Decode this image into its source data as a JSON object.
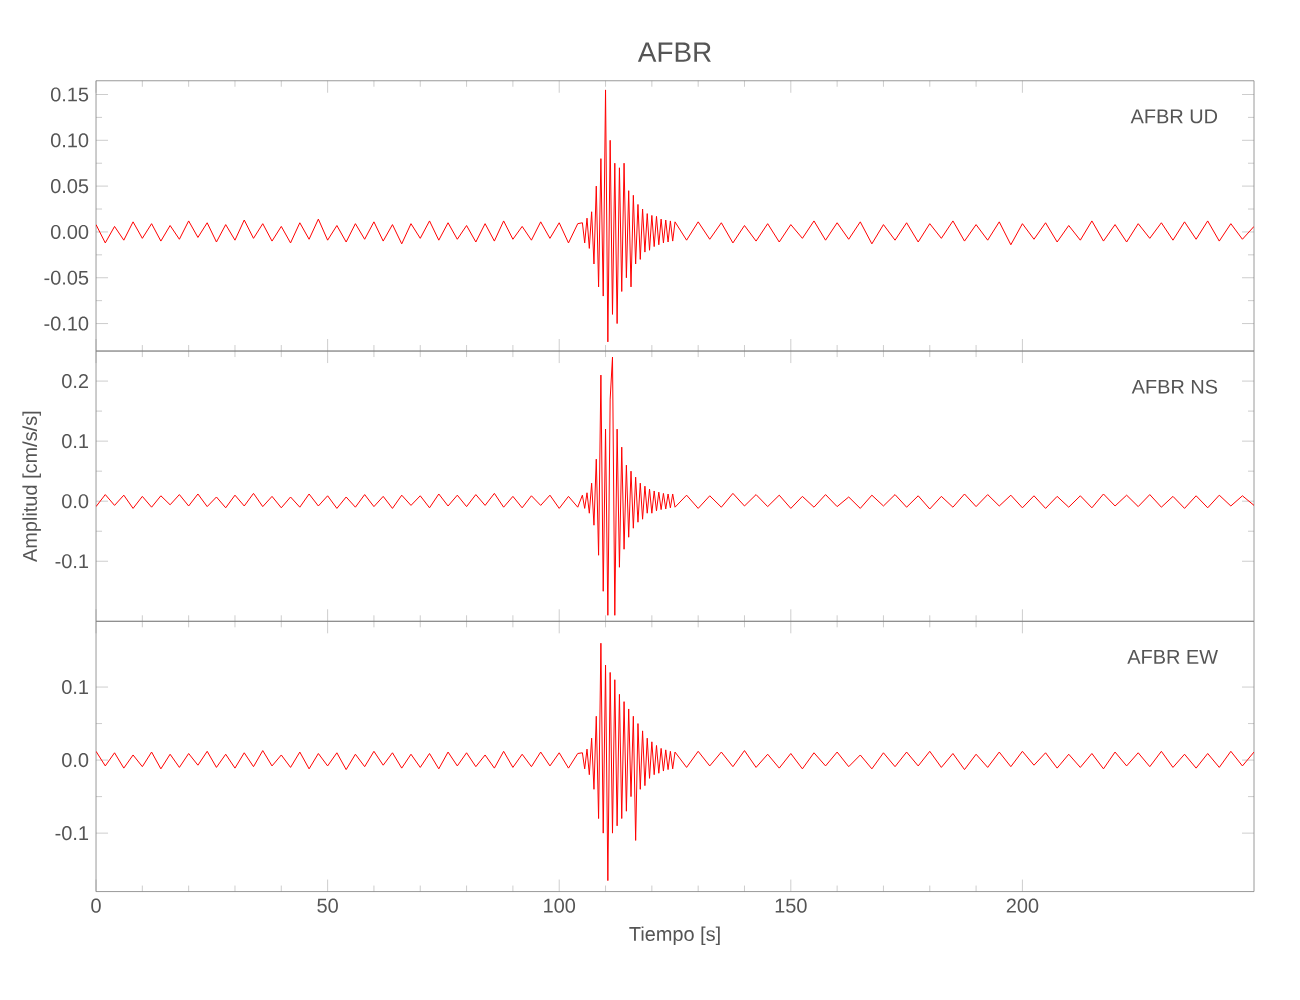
{
  "chart_data": [
    {
      "type": "line",
      "title": "AFBR",
      "annotations": [
        "AFBR   UD"
      ],
      "color": "#ff0000",
      "x": [
        0,
        2,
        4,
        6,
        8,
        10,
        12,
        14,
        16,
        18,
        20,
        22,
        24,
        26,
        28,
        30,
        32,
        34,
        36,
        38,
        40,
        42,
        44,
        46,
        48,
        50,
        52,
        54,
        56,
        58,
        60,
        62,
        64,
        66,
        68,
        70,
        72,
        74,
        76,
        78,
        80,
        82,
        84,
        86,
        88,
        90,
        92,
        94,
        96,
        98,
        100,
        102,
        104,
        105,
        105.5,
        106,
        106.5,
        107,
        107.5,
        108,
        108.5,
        109,
        109.5,
        110,
        110.5,
        111,
        111.5,
        112,
        112.5,
        113,
        113.5,
        114,
        114.5,
        115,
        115.5,
        116,
        116.5,
        117,
        117.5,
        118,
        118.5,
        119,
        119.5,
        120,
        120.5,
        121,
        121.5,
        122,
        122.5,
        123,
        123.5,
        124,
        124.5,
        125,
        127.5,
        130,
        132.5,
        135,
        137.5,
        140,
        142.5,
        145,
        147.5,
        150,
        152.5,
        155,
        157.5,
        160,
        162.5,
        165,
        167.5,
        170,
        172.5,
        175,
        177.5,
        180,
        182.5,
        185,
        187.5,
        190,
        192.5,
        195,
        197.5,
        200,
        202.5,
        205,
        207.5,
        210,
        212.5,
        215,
        217.5,
        220,
        222.5,
        225,
        227.5,
        230,
        232.5,
        235,
        237.5,
        240,
        242.5,
        245,
        247.5,
        250
      ],
      "values": [
        0.008,
        -0.012,
        0.006,
        -0.009,
        0.011,
        -0.007,
        0.009,
        -0.01,
        0.007,
        -0.008,
        0.012,
        -0.006,
        0.01,
        -0.011,
        0.008,
        -0.009,
        0.013,
        -0.007,
        0.009,
        -0.01,
        0.006,
        -0.012,
        0.01,
        -0.008,
        0.014,
        -0.009,
        0.007,
        -0.011,
        0.009,
        -0.008,
        0.011,
        -0.01,
        0.008,
        -0.013,
        0.009,
        -0.007,
        0.012,
        -0.009,
        0.01,
        -0.008,
        0.007,
        -0.011,
        0.009,
        -0.01,
        0.012,
        -0.008,
        0.006,
        -0.009,
        0.011,
        -0.007,
        0.01,
        -0.012,
        0.009,
        0.01,
        -0.012,
        0.015,
        -0.018,
        0.022,
        -0.035,
        0.05,
        -0.06,
        0.08,
        -0.07,
        0.155,
        -0.12,
        0.1,
        -0.09,
        0.075,
        -0.1,
        0.07,
        -0.065,
        0.075,
        -0.05,
        0.045,
        -0.06,
        0.04,
        -0.035,
        0.03,
        -0.03,
        0.025,
        -0.022,
        0.02,
        -0.02,
        0.018,
        -0.016,
        0.017,
        -0.014,
        0.014,
        -0.012,
        0.013,
        -0.011,
        0.012,
        -0.01,
        0.011,
        -0.009,
        0.011,
        -0.008,
        0.01,
        -0.012,
        0.007,
        -0.01,
        0.009,
        -0.011,
        0.008,
        -0.007,
        0.012,
        -0.009,
        0.01,
        -0.008,
        0.011,
        -0.013,
        0.008,
        -0.009,
        0.01,
        -0.011,
        0.009,
        -0.007,
        0.012,
        -0.01,
        0.008,
        -0.009,
        0.011,
        -0.014,
        0.009,
        -0.008,
        0.01,
        -0.011,
        0.007,
        -0.009,
        0.012,
        -0.01,
        0.008,
        -0.011,
        0.009,
        -0.007,
        0.01,
        -0.009,
        0.011,
        -0.008,
        0.012,
        -0.01,
        0.009,
        -0.008,
        0.006
      ],
      "xlim": [
        0,
        250
      ],
      "xticks": [
        0,
        50,
        100,
        150,
        200
      ],
      "ylim": [
        -0.13,
        0.165
      ],
      "yticks": [
        {
          "value": -0.1,
          "label": "-0.10"
        },
        {
          "value": -0.05,
          "label": "-0.05"
        },
        {
          "value": 0,
          "label": "0.00"
        },
        {
          "value": 0.05,
          "label": "0.05"
        },
        {
          "value": 0.1,
          "label": "0.10"
        },
        {
          "value": 0.15,
          "label": "0.15"
        }
      ],
      "tick_labels": "y"
    },
    {
      "type": "line",
      "ylabel": "Amplitud [cm/s/s]",
      "annotations": [
        "AFBR   NS"
      ],
      "color": "#ff0000",
      "x": [
        0,
        2,
        4,
        6,
        8,
        10,
        12,
        14,
        16,
        18,
        20,
        22,
        24,
        26,
        28,
        30,
        32,
        34,
        36,
        38,
        40,
        42,
        44,
        46,
        48,
        50,
        52,
        54,
        56,
        58,
        60,
        62,
        64,
        66,
        68,
        70,
        72,
        74,
        76,
        78,
        80,
        82,
        84,
        86,
        88,
        90,
        92,
        94,
        96,
        98,
        100,
        102,
        104,
        105,
        105.5,
        106,
        106.5,
        107,
        107.5,
        108,
        108.5,
        109,
        109.5,
        110,
        110.5,
        111,
        111.5,
        112,
        112.5,
        113,
        113.5,
        114,
        114.5,
        115,
        115.5,
        116,
        116.5,
        117,
        117.5,
        118,
        118.5,
        119,
        119.5,
        120,
        120.5,
        121,
        121.5,
        122,
        122.5,
        123,
        123.5,
        124,
        124.5,
        125,
        127.5,
        130,
        132.5,
        135,
        137.5,
        140,
        142.5,
        145,
        147.5,
        150,
        152.5,
        155,
        157.5,
        160,
        162.5,
        165,
        167.5,
        170,
        172.5,
        175,
        177.5,
        180,
        182.5,
        185,
        187.5,
        190,
        192.5,
        195,
        197.5,
        200,
        202.5,
        205,
        207.5,
        210,
        212.5,
        215,
        217.5,
        220,
        222.5,
        225,
        227.5,
        230,
        232.5,
        235,
        237.5,
        240,
        242.5,
        245,
        247.5,
        250
      ],
      "values": [
        -0.009,
        0.011,
        -0.007,
        0.01,
        -0.012,
        0.008,
        -0.01,
        0.009,
        -0.006,
        0.011,
        -0.008,
        0.012,
        -0.009,
        0.007,
        -0.011,
        0.01,
        -0.008,
        0.013,
        -0.009,
        0.008,
        -0.011,
        0.007,
        -0.01,
        0.012,
        -0.008,
        0.009,
        -0.012,
        0.007,
        -0.01,
        0.011,
        -0.009,
        0.008,
        -0.012,
        0.01,
        -0.007,
        0.009,
        -0.011,
        0.012,
        -0.008,
        0.01,
        -0.009,
        0.011,
        -0.007,
        0.013,
        -0.01,
        0.008,
        -0.011,
        0.009,
        -0.007,
        0.01,
        -0.012,
        0.008,
        -0.01,
        0.01,
        -0.012,
        0.014,
        -0.02,
        0.03,
        -0.04,
        0.07,
        -0.09,
        0.21,
        -0.15,
        0.12,
        -0.19,
        0.17,
        0.24,
        -0.19,
        0.12,
        -0.11,
        0.09,
        -0.08,
        0.06,
        -0.06,
        0.05,
        -0.045,
        0.04,
        -0.035,
        0.03,
        -0.03,
        0.025,
        -0.02,
        0.02,
        -0.02,
        0.017,
        -0.016,
        0.015,
        -0.014,
        0.013,
        -0.013,
        0.012,
        -0.011,
        0.012,
        -0.01,
        0.01,
        -0.012,
        0.009,
        -0.01,
        0.013,
        -0.008,
        0.011,
        -0.009,
        0.01,
        -0.012,
        0.008,
        -0.01,
        0.011,
        -0.009,
        0.007,
        -0.012,
        0.01,
        -0.008,
        0.011,
        -0.01,
        0.009,
        -0.013,
        0.008,
        -0.01,
        0.012,
        -0.009,
        0.011,
        -0.008,
        0.01,
        -0.011,
        0.009,
        -0.012,
        0.008,
        -0.01,
        0.009,
        -0.011,
        0.012,
        -0.008,
        0.01,
        -0.009,
        0.011,
        -0.01,
        0.008,
        -0.012,
        0.009,
        -0.011,
        0.01,
        -0.008,
        0.009,
        -0.007
      ],
      "xlim": [
        0,
        250
      ],
      "xticks": [
        0,
        50,
        100,
        150,
        200
      ],
      "ylim": [
        -0.2,
        0.25
      ],
      "yticks": [
        {
          "value": -0.1,
          "label": "-0.1"
        },
        {
          "value": 0,
          "label": "0.0"
        },
        {
          "value": 0.1,
          "label": "0.1"
        },
        {
          "value": 0.2,
          "label": "0.2"
        }
      ],
      "tick_labels": "y"
    },
    {
      "type": "line",
      "xlabel": "Tiempo [s]",
      "annotations": [
        "AFBR   EW"
      ],
      "color": "#ff0000",
      "x": [
        0,
        2,
        4,
        6,
        8,
        10,
        12,
        14,
        16,
        18,
        20,
        22,
        24,
        26,
        28,
        30,
        32,
        34,
        36,
        38,
        40,
        42,
        44,
        46,
        48,
        50,
        52,
        54,
        56,
        58,
        60,
        62,
        64,
        66,
        68,
        70,
        72,
        74,
        76,
        78,
        80,
        82,
        84,
        86,
        88,
        90,
        92,
        94,
        96,
        98,
        100,
        102,
        104,
        105,
        105.5,
        106,
        106.5,
        107,
        107.5,
        108,
        108.5,
        109,
        109.5,
        110,
        110.5,
        111,
        111.5,
        112,
        112.5,
        113,
        113.5,
        114,
        114.5,
        115,
        115.5,
        116,
        116.5,
        117,
        117.5,
        118,
        118.5,
        119,
        119.5,
        120,
        120.5,
        121,
        121.5,
        122,
        122.5,
        123,
        123.5,
        124,
        124.5,
        125,
        127.5,
        130,
        132.5,
        135,
        137.5,
        140,
        142.5,
        145,
        147.5,
        150,
        152.5,
        155,
        157.5,
        160,
        162.5,
        165,
        167.5,
        170,
        172.5,
        175,
        177.5,
        180,
        182.5,
        185,
        187.5,
        190,
        192.5,
        195,
        197.5,
        200,
        202.5,
        205,
        207.5,
        210,
        212.5,
        215,
        217.5,
        220,
        222.5,
        225,
        227.5,
        230,
        232.5,
        235,
        237.5,
        240,
        242.5,
        245,
        247.5,
        250
      ],
      "values": [
        0.012,
        -0.008,
        0.01,
        -0.011,
        0.007,
        -0.009,
        0.011,
        -0.012,
        0.008,
        -0.01,
        0.009,
        -0.007,
        0.012,
        -0.01,
        0.008,
        -0.011,
        0.01,
        -0.009,
        0.013,
        -0.008,
        0.007,
        -0.01,
        0.011,
        -0.012,
        0.009,
        -0.008,
        0.01,
        -0.013,
        0.008,
        -0.009,
        0.012,
        -0.007,
        0.01,
        -0.011,
        0.008,
        -0.01,
        0.009,
        -0.012,
        0.011,
        -0.008,
        0.01,
        -0.009,
        0.007,
        -0.011,
        0.012,
        -0.01,
        0.008,
        -0.009,
        0.011,
        -0.008,
        0.01,
        -0.011,
        0.009,
        0.01,
        -0.012,
        0.015,
        -0.02,
        0.03,
        -0.04,
        0.06,
        -0.08,
        0.16,
        -0.1,
        0.13,
        -0.165,
        0.12,
        -0.1,
        0.11,
        -0.09,
        0.09,
        -0.08,
        0.08,
        -0.07,
        0.07,
        -0.05,
        0.06,
        -0.11,
        0.05,
        -0.04,
        0.04,
        -0.035,
        0.03,
        -0.025,
        0.025,
        -0.02,
        0.02,
        -0.018,
        0.016,
        -0.015,
        0.014,
        -0.013,
        0.012,
        -0.012,
        0.011,
        -0.01,
        0.012,
        -0.008,
        0.011,
        -0.009,
        0.013,
        -0.01,
        0.008,
        -0.011,
        0.009,
        -0.012,
        0.01,
        -0.008,
        0.011,
        -0.009,
        0.007,
        -0.012,
        0.01,
        -0.009,
        0.011,
        -0.008,
        0.012,
        -0.01,
        0.009,
        -0.013,
        0.008,
        -0.01,
        0.011,
        -0.009,
        0.012,
        -0.007,
        0.01,
        -0.011,
        0.008,
        -0.01,
        0.009,
        -0.012,
        0.011,
        -0.008,
        0.01,
        -0.009,
        0.012,
        -0.01,
        0.008,
        -0.011,
        0.009,
        -0.01,
        0.012,
        -0.008,
        0.011
      ],
      "xlim": [
        0,
        250
      ],
      "xticks": [
        0,
        50,
        100,
        150,
        200
      ],
      "ylim": [
        -0.18,
        0.19
      ],
      "yticks": [
        {
          "value": -0.1,
          "label": "-0.1"
        },
        {
          "value": 0,
          "label": "0.0"
        },
        {
          "value": 0.1,
          "label": "0.1"
        }
      ]
    }
  ]
}
